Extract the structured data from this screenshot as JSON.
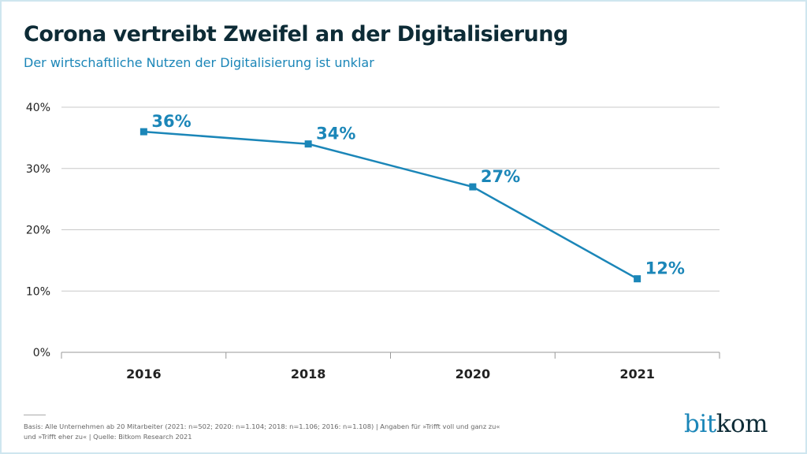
{
  "title": "Corona vertreibt Zweifel an der Digitalisierung",
  "subtitle": "Der wirtschaftliche Nutzen der Digitalisierung ist unklar",
  "footnote": {
    "line1": "Basis: Alle Unternehmen ab 20 Mitarbeiter (2021: n=502; 2020: n=1.104; 2018: n=1.106; 2016: n=1.108) | Angaben für »Trifft voll und ganz zu«",
    "line2": "und  »Trifft eher zu« | Quelle: Bitkom Research 2021"
  },
  "logo": {
    "part1": "bit",
    "part2": "kom"
  },
  "colors": {
    "series": "#1b86b8",
    "grid": "#c8c8c8",
    "title": "#0d2b36"
  },
  "chart_data": {
    "type": "line",
    "categories": [
      "2016",
      "2018",
      "2020",
      "2021"
    ],
    "values": [
      36,
      34,
      27,
      12
    ],
    "data_labels": [
      "36%",
      "34%",
      "27%",
      "12%"
    ],
    "ylim": [
      0,
      40
    ],
    "yticks": [
      "0%",
      "10%",
      "20%",
      "30%",
      "40%"
    ],
    "grid": true,
    "marker": "square"
  }
}
